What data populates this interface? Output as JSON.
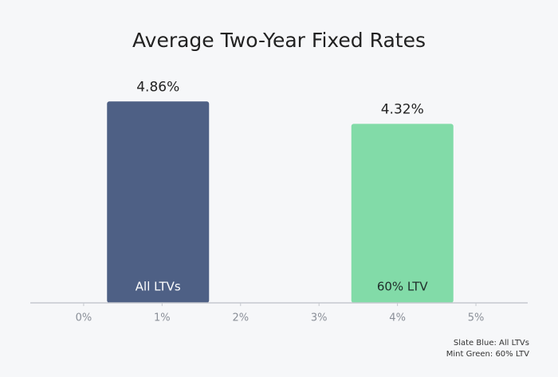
{
  "chart_data": {
    "type": "bar",
    "title": "Average Two-Year Fixed Rates",
    "categories": [
      "All LTVs",
      "60% LTV"
    ],
    "values": [
      4.86,
      4.32
    ],
    "value_labels": [
      "4.86%",
      "4.32%"
    ],
    "colors": [
      "#4e6085",
      "#82dba8"
    ],
    "label_colors": [
      "#ffffff",
      "#1f2d2a"
    ],
    "ylim": [
      0,
      5
    ],
    "xlim": [
      -0.68,
      5.66
    ],
    "xticks": [
      {
        "value": 0,
        "label": "0%"
      },
      {
        "value": 1,
        "label": "1%"
      },
      {
        "value": 2,
        "label": "2%"
      },
      {
        "value": 3,
        "label": "3%"
      },
      {
        "value": 4,
        "label": "4%"
      },
      {
        "value": 5,
        "label": "5%"
      }
    ],
    "legend": [
      "Slate Blue: All LTVs",
      "Mint Green: 60% LTV"
    ]
  }
}
